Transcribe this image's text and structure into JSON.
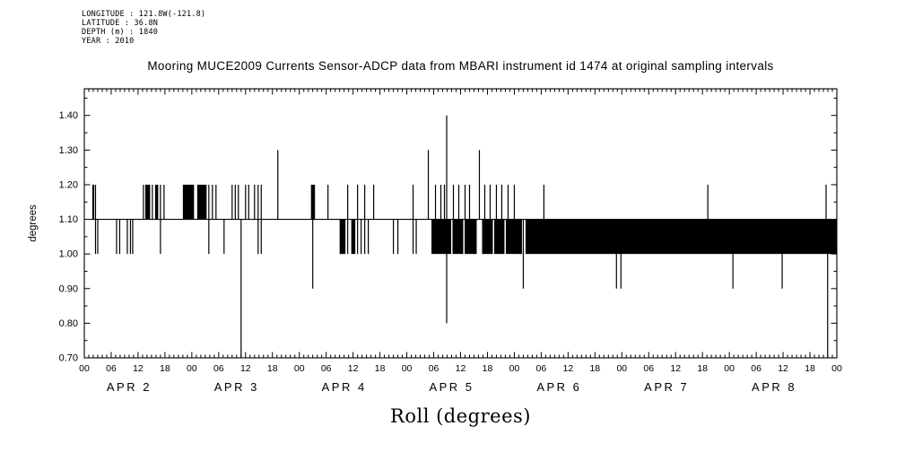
{
  "header": {
    "lines": [
      "LONGITUDE : 121.8W(-121.8)",
      "LATITUDE : 36.8N",
      "DEPTH (m) : 1840",
      "YEAR : 2010"
    ]
  },
  "chart_data": {
    "type": "line",
    "title": "Mooring MUCE2009 Currents Sensor-ADCP data from MBARI instrument id 1474 at original sampling intervals",
    "xlabel": "Roll (degrees)",
    "ylabel": "degrees",
    "ylim": [
      0.7,
      1.477
    ],
    "yticks": [
      0.7,
      0.8,
      0.9,
      1.0,
      1.1,
      1.2,
      1.3,
      1.4
    ],
    "y_minor_step": 0.05,
    "x_hours": [
      0,
      168
    ],
    "x_major_step_hours": 6,
    "x_minor_step_hours": 1,
    "x_tick_label_cycle": [
      "00",
      "06",
      "12",
      "18"
    ],
    "day_labels": [
      {
        "label": "APR 2",
        "t": 10
      },
      {
        "label": "APR 3",
        "t": 34
      },
      {
        "label": "APR 4",
        "t": 58
      },
      {
        "label": "APR 5",
        "t": 82
      },
      {
        "label": "APR 6",
        "t": 106
      },
      {
        "label": "APR 7",
        "t": 130
      },
      {
        "label": "APR 8",
        "t": 154
      }
    ],
    "grid": false,
    "legend": "none",
    "colors": {
      "fg": "#000000",
      "bg": "#ffffff"
    },
    "baseline": {
      "value": 1.1,
      "t_start": 1.2,
      "t_end": 168
    },
    "bands": [
      [
        13.6,
        14.7,
        1.1,
        1.2
      ],
      [
        15.8,
        16.5,
        1.1,
        1.2
      ],
      [
        22.0,
        24.5,
        1.1,
        1.2
      ],
      [
        25.2,
        27.3,
        1.1,
        1.2
      ],
      [
        50.6,
        51.5,
        1.1,
        1.2
      ],
      [
        57.0,
        58.3,
        1.0,
        1.1
      ],
      [
        59.6,
        60.5,
        1.0,
        1.1
      ],
      [
        77.5,
        81.9,
        1.0,
        1.1
      ],
      [
        82.2,
        84.6,
        1.0,
        1.1
      ],
      [
        84.9,
        87.6,
        1.0,
        1.1
      ],
      [
        88.8,
        91.2,
        1.0,
        1.1
      ],
      [
        91.5,
        93.8,
        1.0,
        1.1
      ],
      [
        94.1,
        97.7,
        1.0,
        1.1
      ],
      [
        98.5,
        168.0,
        1.0,
        1.1
      ]
    ],
    "spikes": [
      [
        2.0,
        1.1,
        1.2,
        2.2
      ],
      [
        2.5,
        1.0,
        1.2,
        1.2
      ],
      [
        3.0,
        1.0,
        1.1,
        1.2
      ],
      [
        7.2,
        1.0,
        1.1,
        1.2
      ],
      [
        7.9,
        1.0,
        1.1,
        1.2
      ],
      [
        9.6,
        1.0,
        1.1,
        1.2
      ],
      [
        10.3,
        1.0,
        1.1,
        1.2
      ],
      [
        10.8,
        1.0,
        1.1,
        1.2
      ],
      [
        13.2,
        1.1,
        1.2,
        1.2
      ],
      [
        15.2,
        1.1,
        1.2,
        1.2
      ],
      [
        17.0,
        1.0,
        1.2,
        1.2
      ],
      [
        17.8,
        1.1,
        1.2,
        1.2
      ],
      [
        27.8,
        1.0,
        1.2,
        1.2
      ],
      [
        28.6,
        1.1,
        1.2,
        1.2
      ],
      [
        29.4,
        1.1,
        1.2,
        1.2
      ],
      [
        31.2,
        1.0,
        1.1,
        1.2
      ],
      [
        33.0,
        1.1,
        1.2,
        1.2
      ],
      [
        33.7,
        1.1,
        1.2,
        1.2
      ],
      [
        34.4,
        1.1,
        1.2,
        1.2
      ],
      [
        35.0,
        0.7,
        1.1,
        1.2
      ],
      [
        36.0,
        1.1,
        1.2,
        1.2
      ],
      [
        36.7,
        1.1,
        1.2,
        1.2
      ],
      [
        38.0,
        1.1,
        1.2,
        1.2
      ],
      [
        38.8,
        1.0,
        1.2,
        1.2
      ],
      [
        39.5,
        1.0,
        1.2,
        1.2
      ],
      [
        43.2,
        1.1,
        1.3,
        1.2
      ],
      [
        51.0,
        0.9,
        1.1,
        1.2
      ],
      [
        54.4,
        1.1,
        1.2,
        1.2
      ],
      [
        58.8,
        1.0,
        1.2,
        1.2
      ],
      [
        61.0,
        1.0,
        1.2,
        1.2
      ],
      [
        61.8,
        1.0,
        1.1,
        1.2
      ],
      [
        62.6,
        1.0,
        1.2,
        1.2
      ],
      [
        63.4,
        1.0,
        1.1,
        1.2
      ],
      [
        64.6,
        1.1,
        1.2,
        1.2
      ],
      [
        69.0,
        1.0,
        1.1,
        1.2
      ],
      [
        70.0,
        1.0,
        1.1,
        1.2
      ],
      [
        73.4,
        1.0,
        1.2,
        1.2
      ],
      [
        74.1,
        1.0,
        1.1,
        1.2
      ],
      [
        76.8,
        1.1,
        1.3,
        1.2
      ],
      [
        78.4,
        1.1,
        1.2,
        1.2
      ],
      [
        79.6,
        1.1,
        1.2,
        1.2
      ],
      [
        80.4,
        1.1,
        1.2,
        1.2
      ],
      [
        80.9,
        0.8,
        1.4,
        1.2
      ],
      [
        82.4,
        1.1,
        1.2,
        1.2
      ],
      [
        83.6,
        1.1,
        1.2,
        1.2
      ],
      [
        85.0,
        1.1,
        1.2,
        1.2
      ],
      [
        86.0,
        1.1,
        1.2,
        1.2
      ],
      [
        88.2,
        1.1,
        1.3,
        1.2
      ],
      [
        89.4,
        1.1,
        1.2,
        1.2
      ],
      [
        90.6,
        1.1,
        1.2,
        1.2
      ],
      [
        92.0,
        1.1,
        1.2,
        1.2
      ],
      [
        93.2,
        1.1,
        1.2,
        1.2
      ],
      [
        94.6,
        1.1,
        1.2,
        1.2
      ],
      [
        96.0,
        1.1,
        1.2,
        1.2
      ],
      [
        98.0,
        0.9,
        1.1,
        1.2
      ],
      [
        102.6,
        1.1,
        1.2,
        1.2
      ],
      [
        118.8,
        0.9,
        1.02,
        1.2
      ],
      [
        119.8,
        0.9,
        1.02,
        1.2
      ],
      [
        139.2,
        1.08,
        1.2,
        1.2
      ],
      [
        144.8,
        0.9,
        1.02,
        1.2
      ],
      [
        155.8,
        0.9,
        1.02,
        1.2
      ],
      [
        165.6,
        1.08,
        1.2,
        1.2
      ],
      [
        165.95,
        0.7,
        1.02,
        1.2
      ]
    ]
  }
}
